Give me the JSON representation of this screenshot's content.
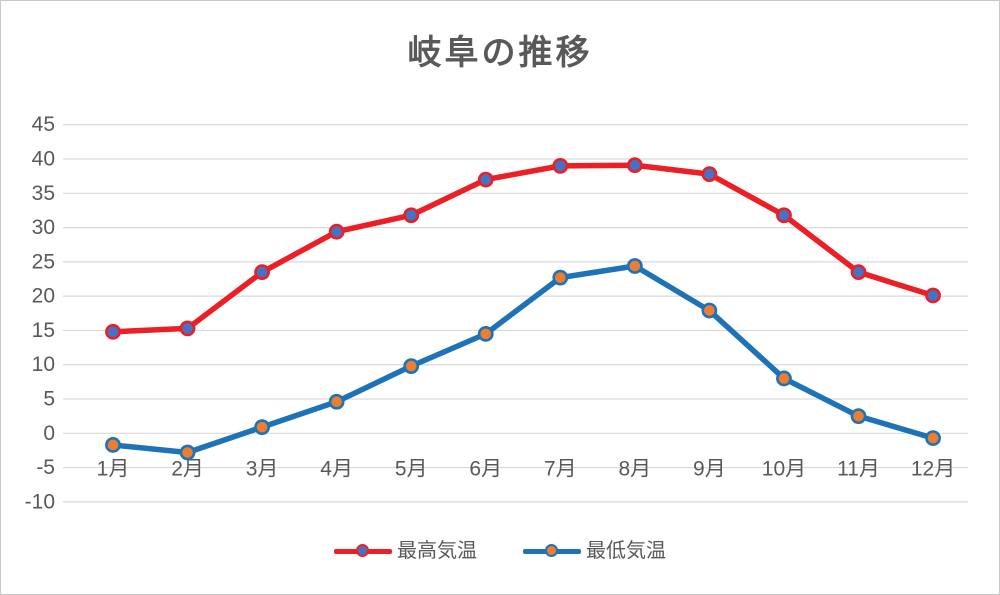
{
  "page": {
    "background_color": "#FFFFFF",
    "border_color": "#C8C8C8"
  },
  "chart_data": {
    "type": "line",
    "title": "岐阜の推移",
    "title_color": "#595959",
    "categories": [
      "1月",
      "2月",
      "3月",
      "4月",
      "5月",
      "6月",
      "7月",
      "8月",
      "9月",
      "10月",
      "11月",
      "12月"
    ],
    "y_ticks": [
      45,
      40,
      35,
      30,
      25,
      20,
      15,
      10,
      5,
      0,
      -5,
      -10
    ],
    "ylim": [
      -10,
      45
    ],
    "grid": true,
    "gridline_color": "#D9D9D9",
    "axis_label_color": "#595959",
    "legend_position": "bottom",
    "series": [
      {
        "name": "最高気温",
        "color": "#EC1E26",
        "marker_fill": "#4472C4",
        "values": [
          14.8,
          15.3,
          23.5,
          29.4,
          31.8,
          37.0,
          39.0,
          39.1,
          37.8,
          31.8,
          23.5,
          20.1
        ]
      },
      {
        "name": "最低気温",
        "color": "#1E73B8",
        "marker_fill": "#ED7D31",
        "values": [
          -1.7,
          -2.8,
          0.9,
          4.6,
          9.8,
          14.5,
          22.7,
          24.4,
          17.9,
          8.0,
          2.5,
          -0.7
        ]
      }
    ]
  }
}
